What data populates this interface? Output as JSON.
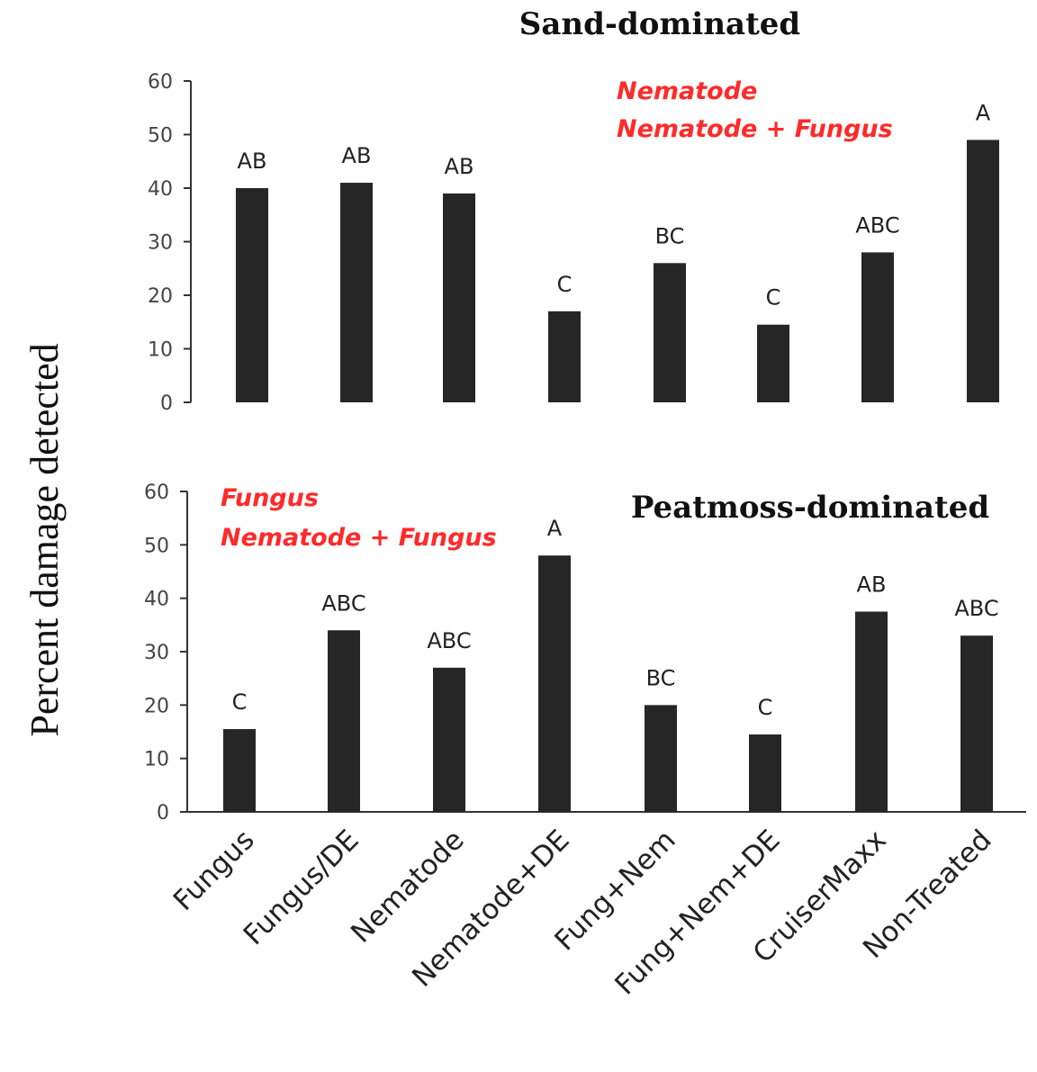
{
  "figure": {
    "ylabel": "Percent damage detected",
    "categories": [
      "Fungus",
      "Fungus/DE",
      "Nematode",
      "Nematode+DE",
      "Fung+Nem",
      "Fung+Nem+DE",
      "CruiserMaxx",
      "Non-Treated"
    ]
  },
  "chart_data": [
    {
      "type": "bar",
      "title": "Sand-dominated",
      "ylabel": "Percent damage detected",
      "categories": [
        "Fungus",
        "Fungus/DE",
        "Nematode",
        "Nematode+DE",
        "Fung+Nem",
        "Fung+Nem+DE",
        "CruiserMaxx",
        "Non-Treated"
      ],
      "values": [
        40,
        41,
        39,
        17,
        26,
        14.5,
        28,
        49
      ],
      "data_labels": [
        "AB",
        "AB",
        "AB",
        "C",
        "BC",
        "C",
        "ABC",
        "A"
      ],
      "ylim": [
        0,
        60
      ],
      "yticks": [
        "0",
        "10",
        "20",
        "30",
        "40",
        "50",
        "60"
      ],
      "annotations": [
        "Nematode",
        "Nematode + Fungus"
      ],
      "annotation_color": "#ff2a2a",
      "bar_color": "#262626",
      "grid": false
    },
    {
      "type": "bar",
      "title": "Peatmoss-dominated",
      "ylabel": "Percent damage detected",
      "categories": [
        "Fungus",
        "Fungus/DE",
        "Nematode",
        "Nematode+DE",
        "Fung+Nem",
        "Fung+Nem+DE",
        "CruiserMaxx",
        "Non-Treated"
      ],
      "values": [
        15.5,
        34,
        27,
        48,
        20,
        14.5,
        37.5,
        33
      ],
      "data_labels": [
        "C",
        "ABC",
        "ABC",
        "A",
        "BC",
        "C",
        "AB",
        "ABC"
      ],
      "ylim": [
        0,
        60
      ],
      "yticks": [
        "0",
        "10",
        "20",
        "30",
        "40",
        "50",
        "60"
      ],
      "annotations": [
        "Fungus",
        "Nematode + Fungus"
      ],
      "annotation_color": "#ff2a2a",
      "bar_color": "#262626",
      "grid": false
    }
  ]
}
